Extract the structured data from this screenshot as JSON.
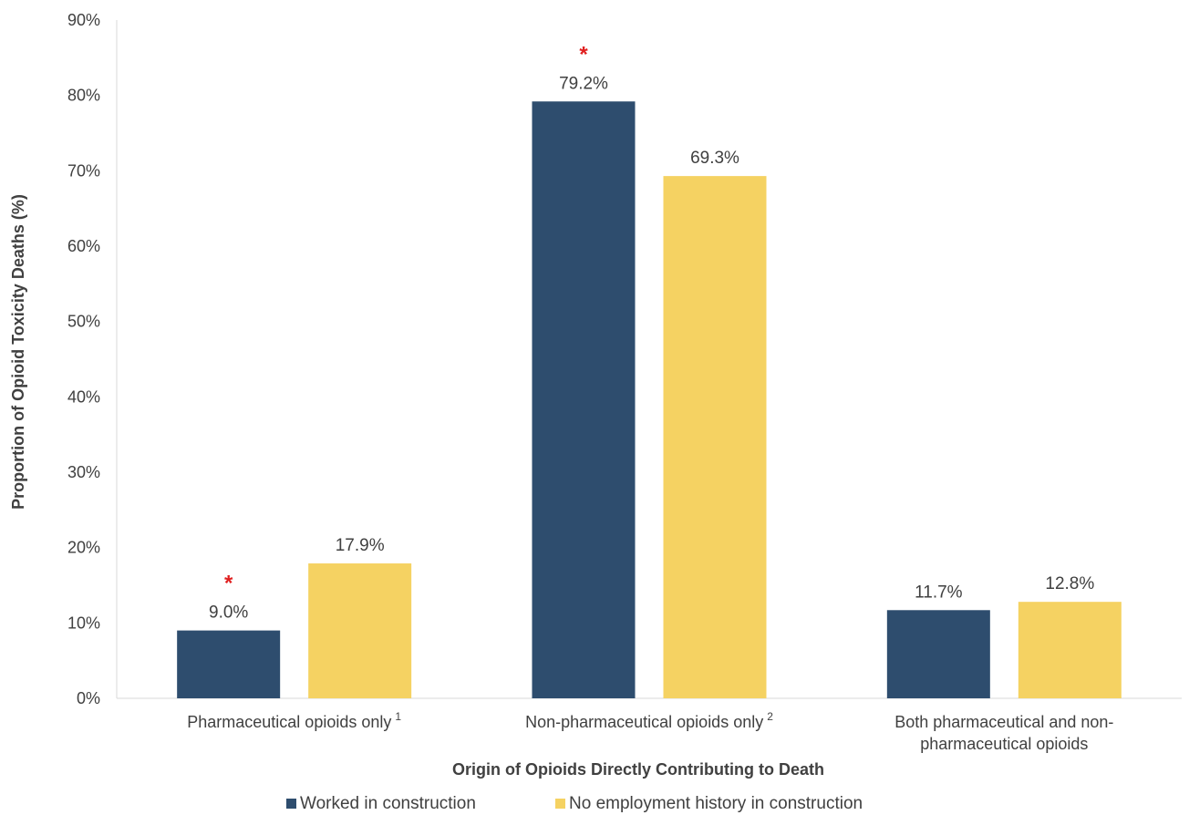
{
  "chart_data": {
    "type": "bar",
    "categories": [
      {
        "label": "Pharmaceutical opioids only",
        "sup": "1"
      },
      {
        "label": "Non-pharmaceutical opioids only",
        "sup": "2"
      },
      {
        "label": "Both pharmaceutical and non-",
        "label2": "pharmaceutical opioids",
        "sup": ""
      }
    ],
    "series": [
      {
        "name": "Worked in construction",
        "color": "#2e4d6e",
        "values": [
          9.0,
          79.2,
          11.7
        ],
        "labels": [
          "9.0%",
          "79.2%",
          "11.7%"
        ],
        "significant": [
          true,
          true,
          false
        ]
      },
      {
        "name": "No employment history in construction",
        "color": "#f5d262",
        "values": [
          17.9,
          69.3,
          12.8
        ],
        "labels": [
          "17.9%",
          "69.3%",
          "12.8%"
        ],
        "significant": [
          false,
          false,
          false
        ]
      }
    ],
    "significance_marker": "*",
    "significance_color": "#e02020",
    "xlabel": "Origin of Opioids Directly Contributing to Death",
    "ylabel": "Proportion of Opioid Toxicity Deaths (%)",
    "ylim": [
      0,
      90
    ],
    "yticks": [
      "0%",
      "10%",
      "20%",
      "30%",
      "40%",
      "50%",
      "60%",
      "70%",
      "80%",
      "90%"
    ],
    "ytick_values": [
      0,
      10,
      20,
      30,
      40,
      50,
      60,
      70,
      80,
      90
    ],
    "grid": false,
    "legend_position": "bottom"
  }
}
